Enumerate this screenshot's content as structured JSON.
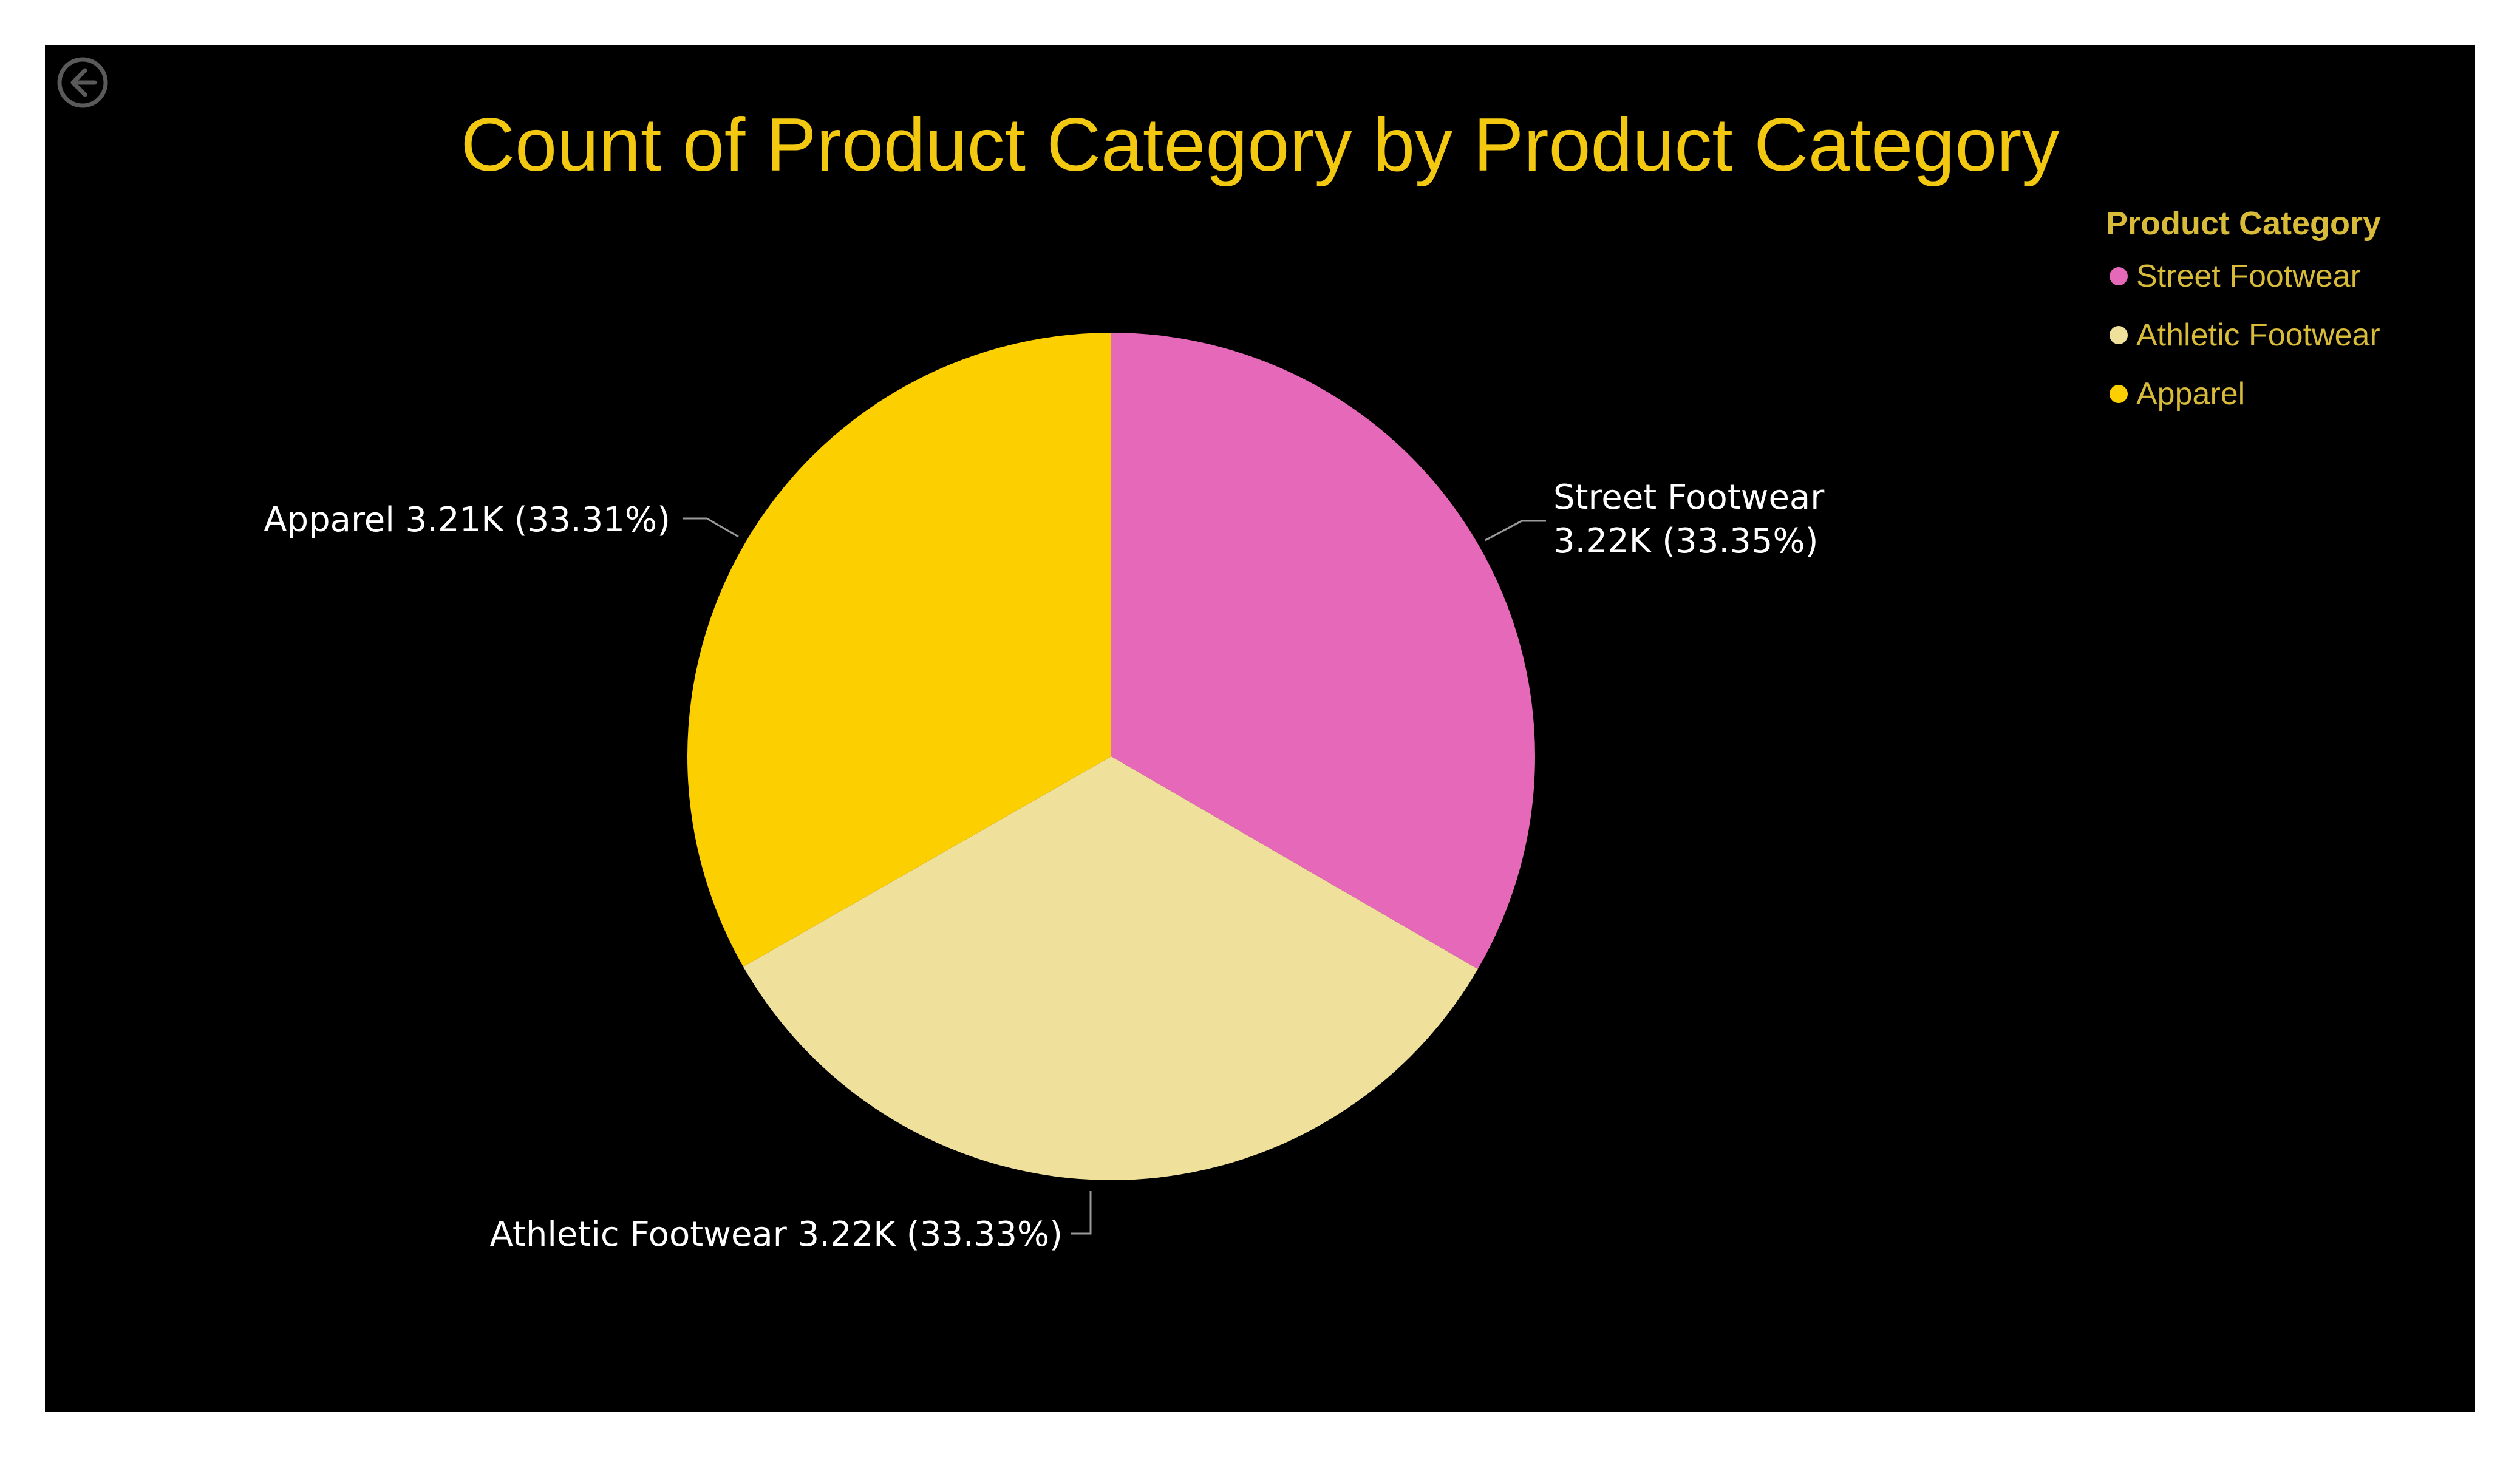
{
  "chart_data": {
    "type": "pie",
    "title": "Count of Product Category by Product Category",
    "legend": {
      "title": "Product Category",
      "placement": "top-right"
    },
    "slices": [
      {
        "name": "Street Footwear",
        "value": 3220,
        "percent": 33.35,
        "color": "#e668b9",
        "label": "Street Footwear 3.22K (33.35%)"
      },
      {
        "name": "Athletic Footwear",
        "value": 3220,
        "percent": 33.33,
        "color": "#efe09c",
        "label": "Athletic Footwear 3.22K (33.33%)"
      },
      {
        "name": "Apparel",
        "value": 3210,
        "percent": 33.31,
        "color": "#fcd000",
        "label": "Apparel 3.21K (33.31%)"
      }
    ],
    "data_labels": {
      "street_line1": "Street Footwear",
      "street_line2": "3.22K (33.35%)",
      "athletic": "Athletic Footwear 3.22K (33.33%)",
      "apparel": "Apparel 3.21K (33.31%)"
    }
  },
  "icons": {
    "back": "back-arrow-icon"
  }
}
